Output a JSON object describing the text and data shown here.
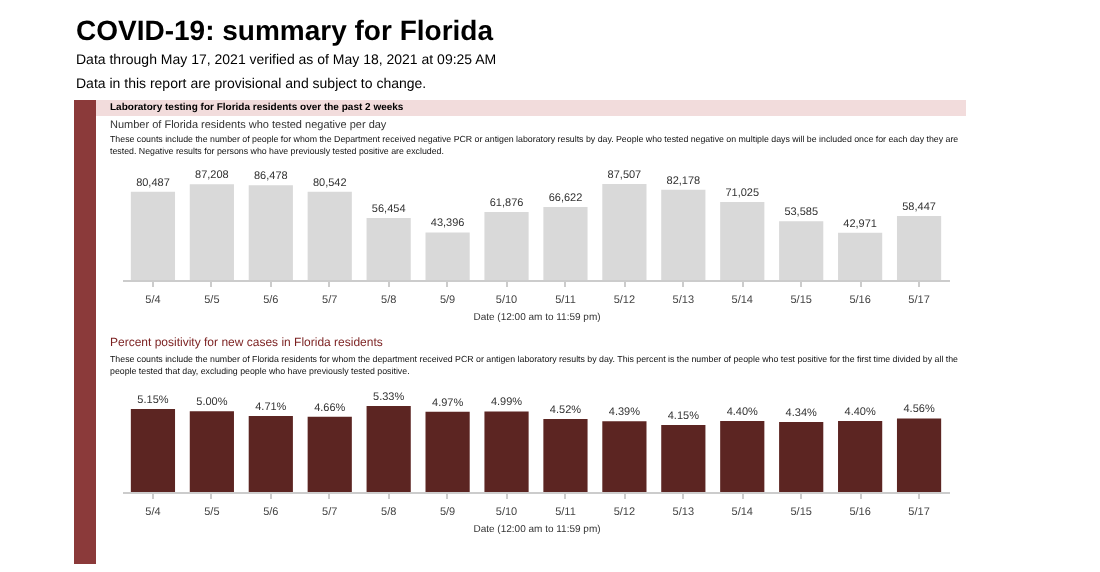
{
  "chart_data": [
    {
      "type": "bar",
      "title": "COVID-19: summary for Florida",
      "subtitle": "Data through May 17, 2021 verified as of May 18, 2021 at 09:25 AM",
      "annotations": [
        "Data in this report are provisional and subject to change.",
        "Laboratory testing for Florida residents over the past 2 weeks",
        "Number of Florida residents who tested negative per day",
        "These counts include the number of people for whom the Department received negative PCR or antigen laboratory results by day. People who tested negative on multiple days will be included once for each day they are tested. Negative results for persons who have previously tested positive are excluded."
      ],
      "categories": [
        "5/4",
        "5/5",
        "5/6",
        "5/7",
        "5/8",
        "5/9",
        "5/10",
        "5/11",
        "5/12",
        "5/13",
        "5/14",
        "5/15",
        "5/16",
        "5/17"
      ],
      "values": [
        80487,
        87208,
        86478,
        80542,
        56454,
        43396,
        61876,
        66622,
        87507,
        82178,
        71025,
        53585,
        42971,
        58447
      ],
      "value_labels": [
        "80,487",
        "87,208",
        "86,478",
        "80,542",
        "56,454",
        "43,396",
        "61,876",
        "66,622",
        "87,507",
        "82,178",
        "71,025",
        "53,585",
        "42,971",
        "58,447"
      ],
      "color": "#d9d9d9",
      "xlabel": "Date (12:00 am to 11:59 pm)",
      "tick_labels": "x",
      "grid": false,
      "legend": false
    },
    {
      "type": "bar",
      "title": "Percent positivity for new cases in Florida residents",
      "annotations": [
        "These counts include the number of Florida residents for whom the department received PCR or antigen laboratory results by day. This percent is the number of people who test positive for the first time divided by all the people tested that day, excluding people who have previously tested positive."
      ],
      "categories": [
        "5/4",
        "5/5",
        "5/6",
        "5/7",
        "5/8",
        "5/9",
        "5/10",
        "5/11",
        "5/12",
        "5/13",
        "5/14",
        "5/15",
        "5/16",
        "5/17"
      ],
      "values": [
        5.15,
        5.0,
        4.71,
        4.66,
        5.33,
        4.97,
        4.99,
        4.52,
        4.39,
        4.15,
        4.4,
        4.34,
        4.4,
        4.56
      ],
      "value_labels": [
        "5.15%",
        "5.00%",
        "4.71%",
        "4.66%",
        "5.33%",
        "4.97%",
        "4.99%",
        "4.52%",
        "4.39%",
        "4.15%",
        "4.40%",
        "4.34%",
        "4.40%",
        "4.56%"
      ],
      "color": "#5c2522",
      "xlabel": "Date (12:00 am to 11:59 pm)",
      "tick_labels": "x",
      "grid": false,
      "legend": false
    }
  ]
}
